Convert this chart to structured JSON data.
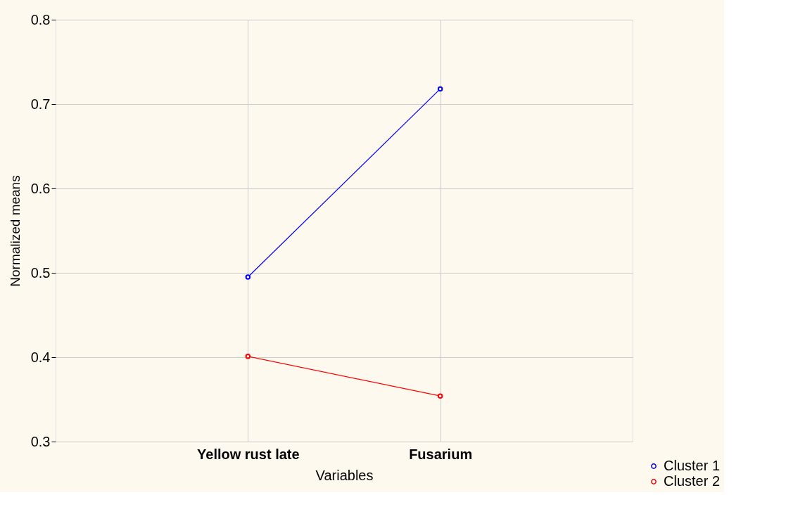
{
  "chart_data": {
    "type": "line",
    "xlabel": "Variables",
    "ylabel": "Normalized means",
    "categories": [
      "Yellow rust late",
      "Fusarium"
    ],
    "series": [
      {
        "name": "Cluster 1",
        "color": "#0000ff",
        "values": [
          0.495,
          0.718
        ]
      },
      {
        "name": "Cluster 2",
        "color": "#ff0000",
        "values": [
          0.401,
          0.354
        ]
      }
    ],
    "ylim": [
      0.3,
      0.8
    ],
    "yticks": [
      0.3,
      0.4,
      0.5,
      0.6,
      0.7,
      0.8
    ],
    "grid": true,
    "legend": "bottom right",
    "marker": "circle",
    "line_style": "solid"
  }
}
